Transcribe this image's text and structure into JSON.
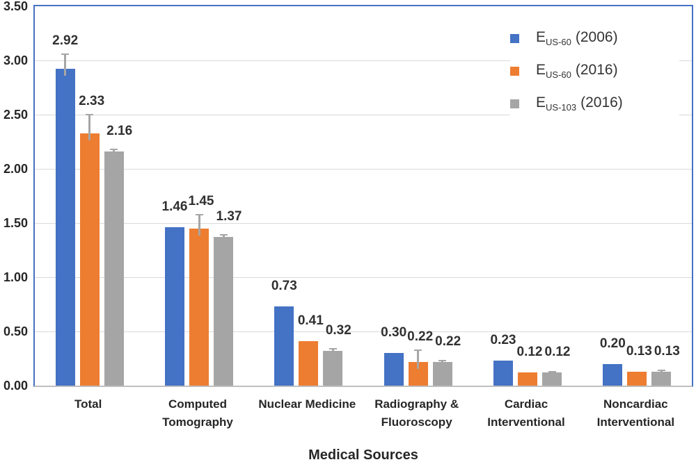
{
  "figure": {
    "background": "#ffffff",
    "plot_border_color": "#4472C4",
    "gridline_color": "#D9D9D9",
    "axis_line_color": "#BFBFBF",
    "error_bar_color": "#A6A6A6",
    "text_color": "#303030"
  },
  "chart_data": {
    "type": "bar",
    "title": "",
    "xlabel": "Medical Sources",
    "ylabel": "",
    "ylim": [
      0,
      3.5
    ],
    "ytick_step": 0.5,
    "ytick_labels": [
      "0.00",
      "0.50",
      "1.00",
      "1.50",
      "2.00",
      "2.50",
      "3.00",
      "3.50"
    ],
    "grid": "horizontal",
    "legend_position": "top-right",
    "categories": [
      [
        "Total"
      ],
      [
        "Computed",
        "Tomography"
      ],
      [
        "Nuclear Medicine"
      ],
      [
        "Radiography &",
        "Fluoroscopy"
      ],
      [
        "Cardiac",
        "Interventional"
      ],
      [
        "Noncardiac",
        "Interventional"
      ]
    ],
    "series": [
      {
        "label_main": "E",
        "label_sub": "US-60",
        "label_rest": "(2006)",
        "color": "#4472C4",
        "values": [
          2.92,
          1.46,
          0.73,
          0.3,
          0.23,
          0.2
        ],
        "labels": [
          "2.92",
          "1.46",
          "0.73",
          "0.30",
          "0.23",
          "0.20"
        ],
        "errors": [
          0.14,
          0,
          0,
          0,
          0,
          0
        ]
      },
      {
        "label_main": "E",
        "label_sub": "US-60",
        "label_rest": "(2016)",
        "color": "#ED7D31",
        "values": [
          2.33,
          1.45,
          0.41,
          0.22,
          0.12,
          0.13
        ],
        "labels": [
          "2.33",
          "1.45",
          "0.41",
          "0.22",
          "0.12",
          "0.13"
        ],
        "errors": [
          0.17,
          0.13,
          0,
          0.11,
          0,
          0
        ]
      },
      {
        "label_main": "E",
        "label_sub": "US-103",
        "label_rest": "(2016)",
        "color": "#A5A5A5",
        "values": [
          2.16,
          1.37,
          0.32,
          0.22,
          0.12,
          0.13
        ],
        "labels": [
          "2.16",
          "1.37",
          "0.32",
          "0.22",
          "0.12",
          "0.13"
        ],
        "errors": [
          0.02,
          0.02,
          0.02,
          0.01,
          0.01,
          0.01
        ]
      }
    ]
  }
}
